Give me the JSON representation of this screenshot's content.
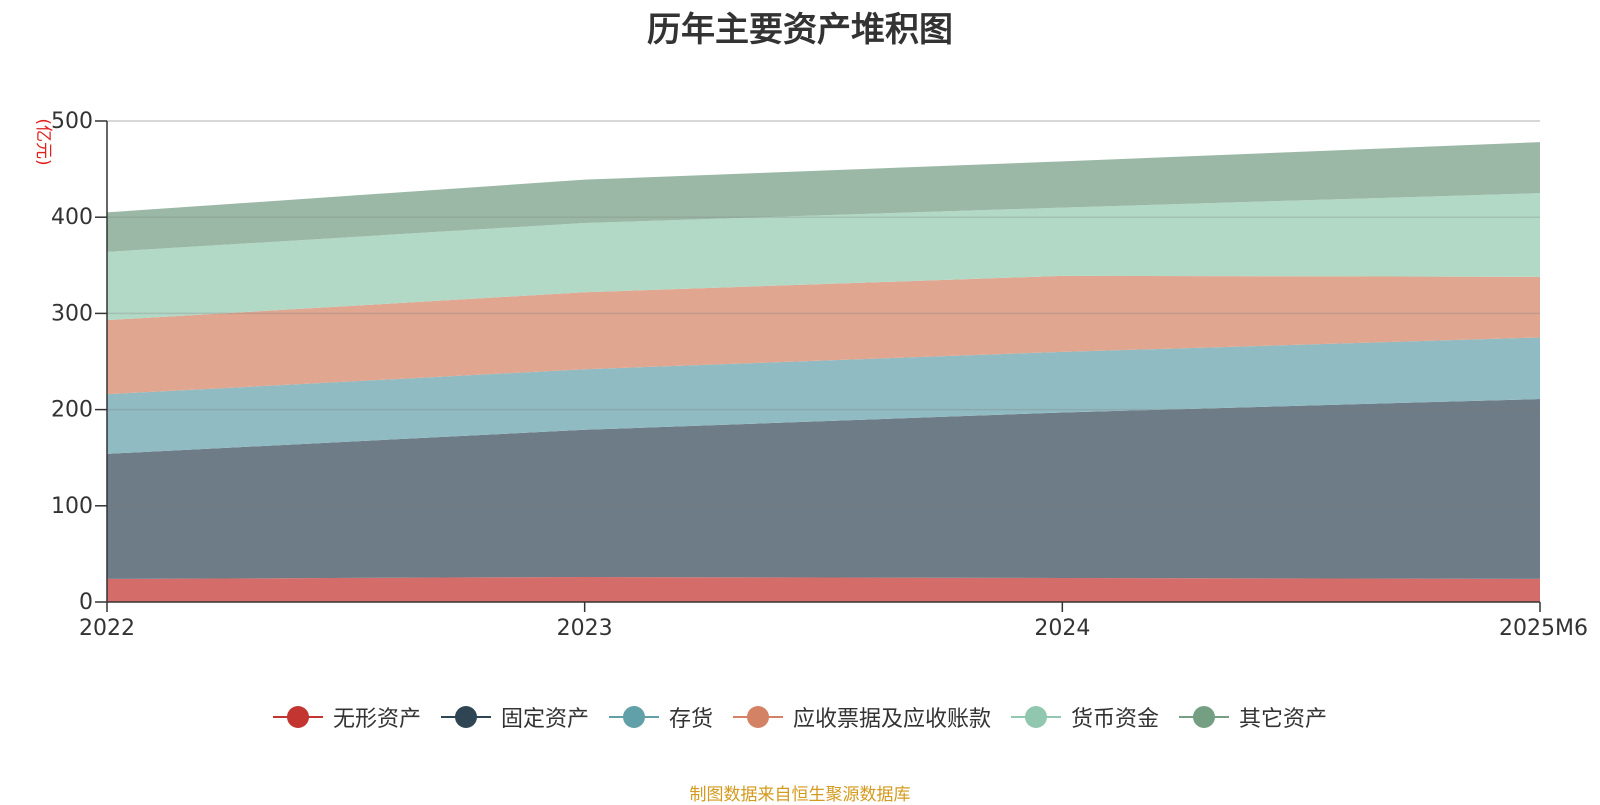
{
  "chart_data": {
    "type": "area",
    "stacked": true,
    "title": "历年主要资产堆积图",
    "ylabel": "(亿元)",
    "xlabel": "",
    "categories": [
      "2022",
      "2023",
      "2024",
      "2025M6"
    ],
    "ylim": [
      0,
      500
    ],
    "yticks": [
      0,
      100,
      200,
      300,
      400,
      500
    ],
    "legend_position": "bottom",
    "series": [
      {
        "name": "无形资产",
        "color": "#c23531",
        "fill": "#d46c6a",
        "values": [
          24,
          26,
          25,
          24
        ]
      },
      {
        "name": "固定资产",
        "color": "#2f4554",
        "fill": "#6e7c87",
        "values": [
          130,
          153,
          172,
          187
        ]
      },
      {
        "name": "存货",
        "color": "#61a0a8",
        "fill": "#90bbc2",
        "values": [
          62,
          63,
          63,
          64
        ]
      },
      {
        "name": "应收票据及应收账款",
        "color": "#d48265",
        "fill": "#e0a690",
        "values": [
          77,
          80,
          79,
          63
        ]
      },
      {
        "name": "货币资金",
        "color": "#91c7ae",
        "fill": "#b2d8c6",
        "values": [
          71,
          72,
          71,
          87
        ]
      },
      {
        "name": "其它资产",
        "color": "#749f83",
        "fill": "#9bb8a6",
        "values": [
          41,
          45,
          48,
          53
        ]
      }
    ],
    "source": "制图数据来自恒生聚源数据库"
  }
}
